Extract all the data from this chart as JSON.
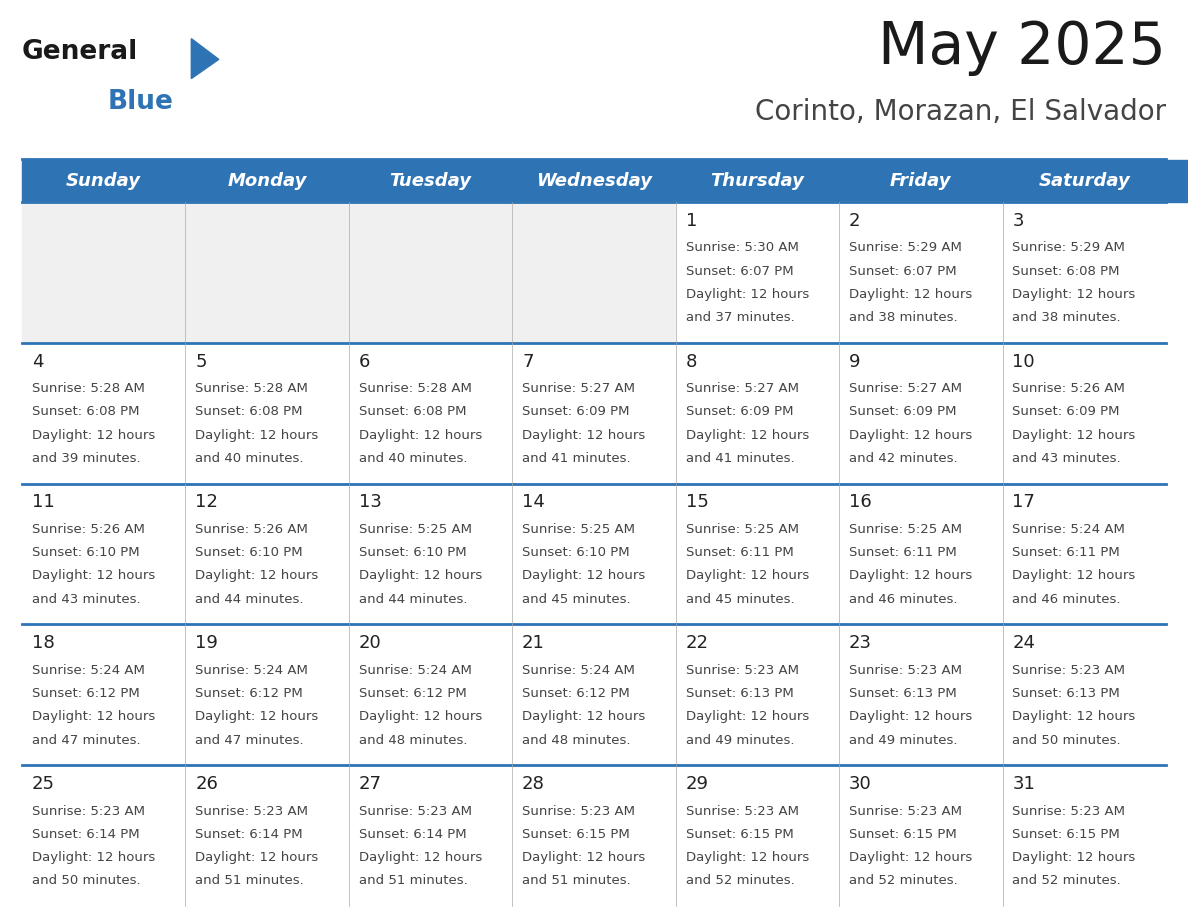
{
  "title": "May 2025",
  "subtitle": "Corinto, Morazan, El Salvador",
  "days_of_week": [
    "Sunday",
    "Monday",
    "Tuesday",
    "Wednesday",
    "Thursday",
    "Friday",
    "Saturday"
  ],
  "header_bg": "#2E74B5",
  "header_text": "#FFFFFF",
  "cell_bg_light": "#FFFFFF",
  "cell_bg_gray": "#F0F0F0",
  "cell_border_color": "#2E74B5",
  "cell_divider_color": "#AAAAAA",
  "text_color": "#444444",
  "day_num_color": "#222222",
  "title_color": "#1a1a1a",
  "subtitle_color": "#444444",
  "logo_black": "#1a1a1a",
  "logo_blue": "#2E74B5",
  "calendar_data": [
    [
      null,
      null,
      null,
      null,
      {
        "day": 1,
        "sunrise": "5:30 AM",
        "sunset": "6:07 PM",
        "daylight": "12 hours and 37 minutes."
      },
      {
        "day": 2,
        "sunrise": "5:29 AM",
        "sunset": "6:07 PM",
        "daylight": "12 hours and 38 minutes."
      },
      {
        "day": 3,
        "sunrise": "5:29 AM",
        "sunset": "6:08 PM",
        "daylight": "12 hours and 38 minutes."
      }
    ],
    [
      {
        "day": 4,
        "sunrise": "5:28 AM",
        "sunset": "6:08 PM",
        "daylight": "12 hours and 39 minutes."
      },
      {
        "day": 5,
        "sunrise": "5:28 AM",
        "sunset": "6:08 PM",
        "daylight": "12 hours and 40 minutes."
      },
      {
        "day": 6,
        "sunrise": "5:28 AM",
        "sunset": "6:08 PM",
        "daylight": "12 hours and 40 minutes."
      },
      {
        "day": 7,
        "sunrise": "5:27 AM",
        "sunset": "6:09 PM",
        "daylight": "12 hours and 41 minutes."
      },
      {
        "day": 8,
        "sunrise": "5:27 AM",
        "sunset": "6:09 PM",
        "daylight": "12 hours and 41 minutes."
      },
      {
        "day": 9,
        "sunrise": "5:27 AM",
        "sunset": "6:09 PM",
        "daylight": "12 hours and 42 minutes."
      },
      {
        "day": 10,
        "sunrise": "5:26 AM",
        "sunset": "6:09 PM",
        "daylight": "12 hours and 43 minutes."
      }
    ],
    [
      {
        "day": 11,
        "sunrise": "5:26 AM",
        "sunset": "6:10 PM",
        "daylight": "12 hours and 43 minutes."
      },
      {
        "day": 12,
        "sunrise": "5:26 AM",
        "sunset": "6:10 PM",
        "daylight": "12 hours and 44 minutes."
      },
      {
        "day": 13,
        "sunrise": "5:25 AM",
        "sunset": "6:10 PM",
        "daylight": "12 hours and 44 minutes."
      },
      {
        "day": 14,
        "sunrise": "5:25 AM",
        "sunset": "6:10 PM",
        "daylight": "12 hours and 45 minutes."
      },
      {
        "day": 15,
        "sunrise": "5:25 AM",
        "sunset": "6:11 PM",
        "daylight": "12 hours and 45 minutes."
      },
      {
        "day": 16,
        "sunrise": "5:25 AM",
        "sunset": "6:11 PM",
        "daylight": "12 hours and 46 minutes."
      },
      {
        "day": 17,
        "sunrise": "5:24 AM",
        "sunset": "6:11 PM",
        "daylight": "12 hours and 46 minutes."
      }
    ],
    [
      {
        "day": 18,
        "sunrise": "5:24 AM",
        "sunset": "6:12 PM",
        "daylight": "12 hours and 47 minutes."
      },
      {
        "day": 19,
        "sunrise": "5:24 AM",
        "sunset": "6:12 PM",
        "daylight": "12 hours and 47 minutes."
      },
      {
        "day": 20,
        "sunrise": "5:24 AM",
        "sunset": "6:12 PM",
        "daylight": "12 hours and 48 minutes."
      },
      {
        "day": 21,
        "sunrise": "5:24 AM",
        "sunset": "6:12 PM",
        "daylight": "12 hours and 48 minutes."
      },
      {
        "day": 22,
        "sunrise": "5:23 AM",
        "sunset": "6:13 PM",
        "daylight": "12 hours and 49 minutes."
      },
      {
        "day": 23,
        "sunrise": "5:23 AM",
        "sunset": "6:13 PM",
        "daylight": "12 hours and 49 minutes."
      },
      {
        "day": 24,
        "sunrise": "5:23 AM",
        "sunset": "6:13 PM",
        "daylight": "12 hours and 50 minutes."
      }
    ],
    [
      {
        "day": 25,
        "sunrise": "5:23 AM",
        "sunset": "6:14 PM",
        "daylight": "12 hours and 50 minutes."
      },
      {
        "day": 26,
        "sunrise": "5:23 AM",
        "sunset": "6:14 PM",
        "daylight": "12 hours and 51 minutes."
      },
      {
        "day": 27,
        "sunrise": "5:23 AM",
        "sunset": "6:14 PM",
        "daylight": "12 hours and 51 minutes."
      },
      {
        "day": 28,
        "sunrise": "5:23 AM",
        "sunset": "6:15 PM",
        "daylight": "12 hours and 51 minutes."
      },
      {
        "day": 29,
        "sunrise": "5:23 AM",
        "sunset": "6:15 PM",
        "daylight": "12 hours and 52 minutes."
      },
      {
        "day": 30,
        "sunrise": "5:23 AM",
        "sunset": "6:15 PM",
        "daylight": "12 hours and 52 minutes."
      },
      {
        "day": 31,
        "sunrise": "5:23 AM",
        "sunset": "6:15 PM",
        "daylight": "12 hours and 52 minutes."
      }
    ]
  ]
}
